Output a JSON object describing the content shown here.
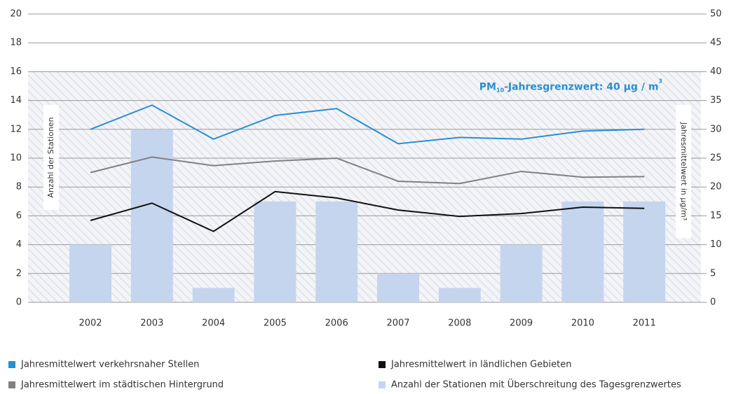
{
  "chart_data": {
    "type": "combo",
    "categories": [
      "2002",
      "2003",
      "2004",
      "2005",
      "2006",
      "2007",
      "2008",
      "2009",
      "2010",
      "2011"
    ],
    "ylabel": "Anzahl der Stationen",
    "y2label": "Jahresmittelwert in µg/m³",
    "ylim": [
      0,
      20
    ],
    "yticks": [
      0,
      2,
      4,
      6,
      8,
      10,
      12,
      14,
      16,
      18,
      20
    ],
    "y2lim": [
      0,
      50
    ],
    "y2ticks": [
      0,
      5,
      10,
      15,
      20,
      25,
      30,
      35,
      40,
      45,
      50
    ],
    "grid": true,
    "limit": {
      "value": 40,
      "axis": "y2",
      "label": [
        "PM",
        "10",
        "-Jahresgrenzwert: 40 µg / m",
        "3"
      ]
    },
    "series": [
      {
        "name": "Jahresmittelwert verkehrsnaher Stellen",
        "type": "line",
        "axis": "y2",
        "color": "#2a8fd0",
        "values": [
          30.0,
          34.2,
          28.3,
          32.4,
          33.6,
          27.5,
          28.6,
          28.3,
          29.7,
          30.0
        ]
      },
      {
        "name": "Jahresmittelwert im städtischen Hintergrund",
        "type": "line",
        "axis": "y2",
        "color": "#808080",
        "values": [
          22.5,
          25.2,
          23.7,
          24.5,
          25.0,
          21.0,
          20.6,
          22.7,
          21.7,
          21.8
        ]
      },
      {
        "name": "Jahresmittelwert in ländlichen Gebieten",
        "type": "line",
        "axis": "y2",
        "color": "#111111",
        "values": [
          14.2,
          17.2,
          12.3,
          19.2,
          18.1,
          16.0,
          14.9,
          15.4,
          16.5,
          16.3
        ]
      },
      {
        "name": "Anzahl der Stationen mit Überschreitung des Tagesgrenzwertes",
        "type": "bar",
        "axis": "y",
        "color": "#c5d5ee",
        "values": [
          4,
          12,
          1,
          7,
          7,
          2,
          1,
          4,
          7,
          7
        ]
      }
    ]
  }
}
